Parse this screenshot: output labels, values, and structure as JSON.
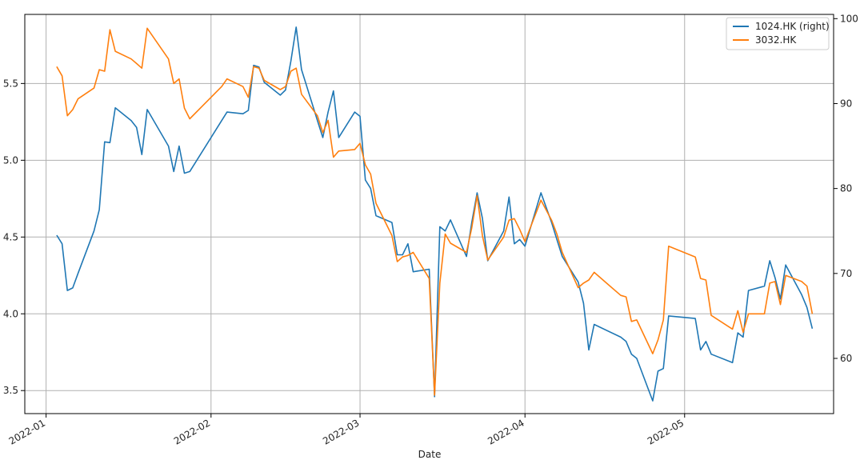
{
  "chart_data": {
    "type": "line",
    "xlabel": "Date",
    "x_ticks": [
      "2022-01",
      "2022-02",
      "2022-03",
      "2022-04",
      "2022-05"
    ],
    "y_left_ticks": [
      "3.5",
      "4.0",
      "4.5",
      "5.0",
      "5.5"
    ],
    "y_right_ticks": [
      "60",
      "70",
      "80",
      "90",
      "100"
    ],
    "ylim_left": [
      3.35,
      5.95
    ],
    "ylim_right": [
      53.5,
      100.5
    ],
    "xlim": [
      "2021-12-28",
      "2022-05-29"
    ],
    "grid": true,
    "legend_position": "top-right",
    "colors": {
      "1024.HK (right)": "#1f77b4",
      "3032.HK": "#ff7f0e"
    },
    "series": [
      {
        "name": "1024.HK (right)",
        "axis": "right",
        "points": [
          [
            "2022-01-03",
            74.5
          ],
          [
            "2022-01-04",
            73.5
          ],
          [
            "2022-01-05",
            68.0
          ],
          [
            "2022-01-06",
            68.3
          ],
          [
            "2022-01-07",
            70.0
          ],
          [
            "2022-01-10",
            75.0
          ],
          [
            "2022-01-11",
            77.5
          ],
          [
            "2022-01-12",
            85.5
          ],
          [
            "2022-01-13",
            85.4
          ],
          [
            "2022-01-14",
            89.5
          ],
          [
            "2022-01-17",
            88.0
          ],
          [
            "2022-01-18",
            87.2
          ],
          [
            "2022-01-19",
            84.0
          ],
          [
            "2022-01-20",
            89.3
          ],
          [
            "2022-01-24",
            85.0
          ],
          [
            "2022-01-25",
            82.0
          ],
          [
            "2022-01-26",
            85.0
          ],
          [
            "2022-01-27",
            81.8
          ],
          [
            "2022-01-28",
            82.0
          ],
          [
            "2022-02-03",
            88.0
          ],
          [
            "2022-02-04",
            89.0
          ],
          [
            "2022-02-07",
            88.8
          ],
          [
            "2022-02-08",
            89.2
          ],
          [
            "2022-02-09",
            94.5
          ],
          [
            "2022-02-10",
            94.3
          ],
          [
            "2022-02-11",
            92.5
          ],
          [
            "2022-02-14",
            91.0
          ],
          [
            "2022-02-15",
            91.6
          ],
          [
            "2022-02-16",
            95.0
          ],
          [
            "2022-02-17",
            99.0
          ],
          [
            "2022-02-18",
            94.0
          ],
          [
            "2022-02-21",
            88.0
          ],
          [
            "2022-02-22",
            86.0
          ],
          [
            "2022-02-23",
            89.0
          ],
          [
            "2022-02-24",
            91.5
          ],
          [
            "2022-02-25",
            86.0
          ],
          [
            "2022-02-28",
            89.0
          ],
          [
            "2022-03-01",
            88.5
          ],
          [
            "2022-03-02",
            81.0
          ],
          [
            "2022-03-03",
            80.0
          ],
          [
            "2022-03-04",
            76.8
          ],
          [
            "2022-03-07",
            76.0
          ],
          [
            "2022-03-08",
            72.2
          ],
          [
            "2022-03-09",
            72.2
          ],
          [
            "2022-03-10",
            73.5
          ],
          [
            "2022-03-11",
            70.2
          ],
          [
            "2022-03-14",
            70.5
          ],
          [
            "2022-03-15",
            55.5
          ],
          [
            "2022-03-16",
            75.5
          ],
          [
            "2022-03-17",
            75.0
          ],
          [
            "2022-03-18",
            76.3
          ],
          [
            "2022-03-21",
            72.0
          ],
          [
            "2022-03-22",
            76.0
          ],
          [
            "2022-03-23",
            79.5
          ],
          [
            "2022-03-24",
            76.5
          ],
          [
            "2022-03-25",
            71.5
          ],
          [
            "2022-03-28",
            75.0
          ],
          [
            "2022-03-29",
            79.0
          ],
          [
            "2022-03-30",
            73.5
          ],
          [
            "2022-03-31",
            74.0
          ],
          [
            "2022-04-01",
            73.2
          ],
          [
            "2022-04-04",
            79.5
          ],
          [
            "2022-04-06",
            76.0
          ],
          [
            "2022-04-07",
            74.0
          ],
          [
            "2022-04-08",
            72.0
          ],
          [
            "2022-04-11",
            69.0
          ],
          [
            "2022-04-12",
            66.5
          ],
          [
            "2022-04-13",
            61.0
          ],
          [
            "2022-04-14",
            64.0
          ],
          [
            "2022-04-19",
            62.5
          ],
          [
            "2022-04-20",
            62.0
          ],
          [
            "2022-04-21",
            60.5
          ],
          [
            "2022-04-22",
            60.0
          ],
          [
            "2022-04-25",
            55.0
          ],
          [
            "2022-04-26",
            58.5
          ],
          [
            "2022-04-27",
            58.8
          ],
          [
            "2022-04-28",
            65.0
          ],
          [
            "2022-05-03",
            64.7
          ],
          [
            "2022-05-04",
            61.0
          ],
          [
            "2022-05-05",
            62.0
          ],
          [
            "2022-05-06",
            60.5
          ],
          [
            "2022-05-10",
            59.5
          ],
          [
            "2022-05-11",
            63.0
          ],
          [
            "2022-05-12",
            62.5
          ],
          [
            "2022-05-13",
            68.0
          ],
          [
            "2022-05-16",
            68.5
          ],
          [
            "2022-05-17",
            71.5
          ],
          [
            "2022-05-18",
            69.5
          ],
          [
            "2022-05-19",
            67.0
          ],
          [
            "2022-05-20",
            71.0
          ],
          [
            "2022-05-23",
            67.5
          ],
          [
            "2022-05-24",
            66.0
          ],
          [
            "2022-05-25",
            63.5
          ]
        ]
      },
      {
        "name": "3032.HK",
        "axis": "left",
        "points": [
          [
            "2022-01-03",
            5.61
          ],
          [
            "2022-01-04",
            5.55
          ],
          [
            "2022-01-05",
            5.29
          ],
          [
            "2022-01-06",
            5.33
          ],
          [
            "2022-01-07",
            5.4
          ],
          [
            "2022-01-10",
            5.47
          ],
          [
            "2022-01-11",
            5.59
          ],
          [
            "2022-01-12",
            5.58
          ],
          [
            "2022-01-13",
            5.85
          ],
          [
            "2022-01-14",
            5.71
          ],
          [
            "2022-01-17",
            5.66
          ],
          [
            "2022-01-18",
            5.63
          ],
          [
            "2022-01-19",
            5.6
          ],
          [
            "2022-01-20",
            5.86
          ],
          [
            "2022-01-24",
            5.66
          ],
          [
            "2022-01-25",
            5.5
          ],
          [
            "2022-01-26",
            5.53
          ],
          [
            "2022-01-27",
            5.34
          ],
          [
            "2022-01-28",
            5.27
          ],
          [
            "2022-02-03",
            5.48
          ],
          [
            "2022-02-04",
            5.53
          ],
          [
            "2022-02-07",
            5.48
          ],
          [
            "2022-02-08",
            5.41
          ],
          [
            "2022-02-09",
            5.61
          ],
          [
            "2022-02-10",
            5.6
          ],
          [
            "2022-02-11",
            5.52
          ],
          [
            "2022-02-14",
            5.46
          ],
          [
            "2022-02-15",
            5.48
          ],
          [
            "2022-02-16",
            5.58
          ],
          [
            "2022-02-17",
            5.6
          ],
          [
            "2022-02-18",
            5.43
          ],
          [
            "2022-02-21",
            5.29
          ],
          [
            "2022-02-22",
            5.18
          ],
          [
            "2022-02-23",
            5.26
          ],
          [
            "2022-02-24",
            5.02
          ],
          [
            "2022-02-25",
            5.06
          ],
          [
            "2022-02-28",
            5.07
          ],
          [
            "2022-03-01",
            5.11
          ],
          [
            "2022-03-02",
            4.97
          ],
          [
            "2022-03-03",
            4.91
          ],
          [
            "2022-03-04",
            4.72
          ],
          [
            "2022-03-07",
            4.51
          ],
          [
            "2022-03-08",
            4.34
          ],
          [
            "2022-03-09",
            4.37
          ],
          [
            "2022-03-10",
            4.38
          ],
          [
            "2022-03-11",
            4.4
          ],
          [
            "2022-03-14",
            4.23
          ],
          [
            "2022-03-15",
            3.47
          ],
          [
            "2022-03-16",
            4.2
          ],
          [
            "2022-03-17",
            4.52
          ],
          [
            "2022-03-18",
            4.46
          ],
          [
            "2022-03-21",
            4.4
          ],
          [
            "2022-03-22",
            4.56
          ],
          [
            "2022-03-23",
            4.77
          ],
          [
            "2022-03-24",
            4.51
          ],
          [
            "2022-03-25",
            4.35
          ],
          [
            "2022-03-28",
            4.5
          ],
          [
            "2022-03-29",
            4.61
          ],
          [
            "2022-03-30",
            4.62
          ],
          [
            "2022-03-31",
            4.55
          ],
          [
            "2022-04-01",
            4.47
          ],
          [
            "2022-04-04",
            4.74
          ],
          [
            "2022-04-06",
            4.61
          ],
          [
            "2022-04-07",
            4.52
          ],
          [
            "2022-04-08",
            4.4
          ],
          [
            "2022-04-11",
            4.17
          ],
          [
            "2022-04-12",
            4.2
          ],
          [
            "2022-04-13",
            4.22
          ],
          [
            "2022-04-14",
            4.27
          ],
          [
            "2022-04-19",
            4.12
          ],
          [
            "2022-04-20",
            4.11
          ],
          [
            "2022-04-21",
            3.95
          ],
          [
            "2022-04-22",
            3.96
          ],
          [
            "2022-04-25",
            3.74
          ],
          [
            "2022-04-26",
            3.83
          ],
          [
            "2022-04-27",
            3.96
          ],
          [
            "2022-04-28",
            4.44
          ],
          [
            "2022-05-03",
            4.37
          ],
          [
            "2022-05-04",
            4.23
          ],
          [
            "2022-05-05",
            4.22
          ],
          [
            "2022-05-06",
            3.99
          ],
          [
            "2022-05-10",
            3.9
          ],
          [
            "2022-05-11",
            4.02
          ],
          [
            "2022-05-12",
            3.88
          ],
          [
            "2022-05-13",
            4.0
          ],
          [
            "2022-05-16",
            4.0
          ],
          [
            "2022-05-17",
            4.2
          ],
          [
            "2022-05-18",
            4.21
          ],
          [
            "2022-05-19",
            4.06
          ],
          [
            "2022-05-20",
            4.25
          ],
          [
            "2022-05-23",
            4.21
          ],
          [
            "2022-05-24",
            4.18
          ],
          [
            "2022-05-25",
            4.0
          ]
        ]
      }
    ]
  }
}
